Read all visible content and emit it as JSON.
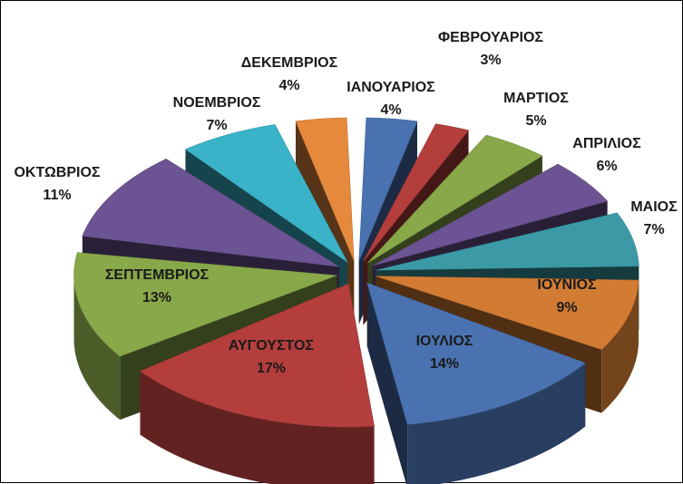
{
  "chart_data": {
    "type": "pie",
    "style": "exploded-3d",
    "title": "",
    "categories": [
      "ΙΑΝΟΥΑΡΙΟΣ",
      "ΦΕΒΡΟΥΑΡΙΟΣ",
      "ΜΑΡΤΙΟΣ",
      "ΑΠΡΙΛΙΟΣ",
      "ΜΑΙΟΣ",
      "ΙΟΥΝΙΟΣ",
      "ΙΟΥΛΙΟΣ",
      "ΑΥΓΟΥΣΤΟΣ",
      "ΣΕΠΤΕΜΒΡΙΟΣ",
      "ΟΚΤΩΒΡΙΟΣ",
      "ΝΟΕΜΒΡΙΟΣ",
      "ΔΕΚΕΜΒΡΙΟΣ"
    ],
    "values": [
      4,
      3,
      5,
      6,
      7,
      9,
      14,
      17,
      13,
      11,
      7,
      4
    ],
    "value_labels": [
      "4%",
      "3%",
      "5%",
      "6%",
      "7%",
      "9%",
      "14%",
      "17%",
      "13%",
      "11%",
      "7%",
      "4%"
    ],
    "colors": [
      "#4a72b0",
      "#b33e3c",
      "#88a84a",
      "#6c5393",
      "#3b9aa6",
      "#d27b33",
      "#4a72b0",
      "#b33e3c",
      "#88a84a",
      "#6c5393",
      "#3ab2c8",
      "#e5893d"
    ],
    "legend": "none"
  }
}
